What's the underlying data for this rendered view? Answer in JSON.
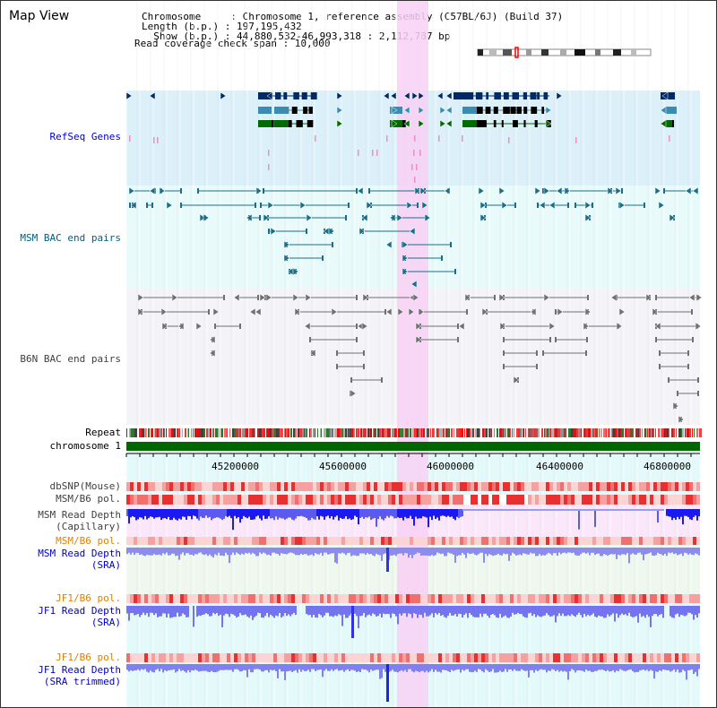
{
  "header": {
    "title": "Map View",
    "info_lines": [
      "Chromosome     : Chromosome 1, reference assembly (C57BL/6J) (Build 37)",
      "Length (b.p.) : 197,195,432",
      "  Show (b.p.) : 44,880,532-46,993,318 : 2,112,787 bp",
      "Read coverage check span : 10,000"
    ]
  },
  "tracks": {
    "refseq": "RefSeq Genes",
    "msm_bac": "MSM BAC end pairs",
    "b6n_bac": "B6N BAC end pairs",
    "repeat": "Repeat",
    "chromosome": "chromosome 1",
    "dbsnp": "dbSNP(Mouse)",
    "msm_b6_pol": "MSM/B6 pol.",
    "msm_read_depth_cap": [
      "MSM Read Depth",
      "(Capillary)"
    ],
    "msm_b6_pol2": "MSM/B6 pol.",
    "msm_read_depth_sra": [
      "MSM Read Depth",
      "(SRA)"
    ],
    "jf1_b6_pol": "JF1/B6 pol.",
    "jf1_read_depth_sra": [
      "JF1 Read Depth",
      "(SRA)"
    ],
    "jf1_b6_pol2": "JF1/B6 pol.",
    "jf1_read_depth_trim": [
      "JF1 Read Depth",
      "(SRA trimmed)"
    ]
  },
  "axis": {
    "ticks": [
      "45200000",
      "45600000",
      "46000000",
      "46400000",
      "46800000"
    ]
  },
  "colors": {
    "blue_label": "#0000cc",
    "teal_label": "#006080",
    "gray_label": "#404040",
    "orange_label": "#e08000",
    "highlight": "#f8d0f4",
    "chromosome": "#006600"
  }
}
